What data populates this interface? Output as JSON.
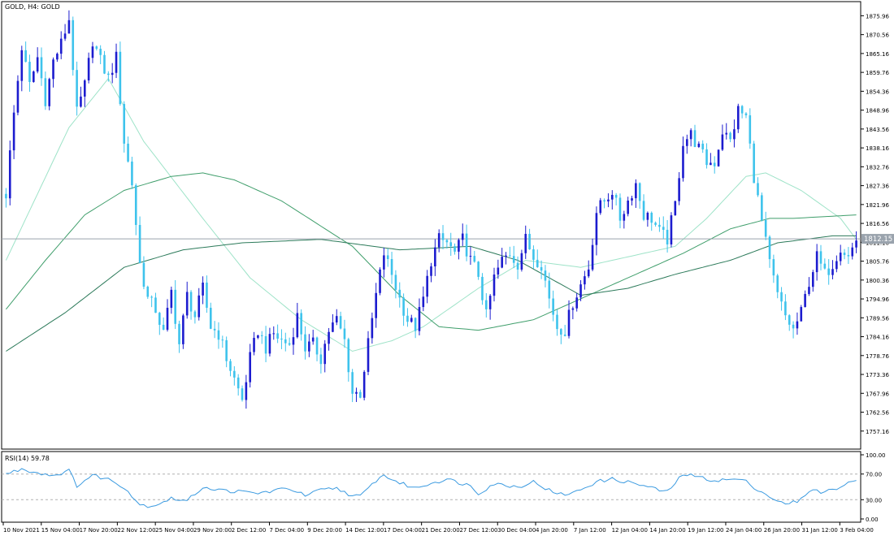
{
  "chart_data": [
    {
      "type": "candlestick",
      "title": "GOLD, H4:  GOLD",
      "ylim": [
        1752.0,
        1880.0
      ],
      "y_ticks": [
        1757.16,
        1762.56,
        1767.96,
        1773.36,
        1778.76,
        1784.16,
        1789.56,
        1794.96,
        1800.36,
        1805.76,
        1811.16,
        1816.56,
        1821.96,
        1827.36,
        1832.76,
        1838.16,
        1843.56,
        1848.96,
        1854.36,
        1859.76,
        1865.16,
        1870.56,
        1875.96
      ],
      "x_tick_labels": [
        "10 Nov 2021",
        "15 Nov 04:00",
        "17 Nov 20:00",
        "22 Nov 12:00",
        "25 Nov 04:00",
        "29 Nov 20:00",
        "2 Dec 12:00",
        "7 Dec 04:00",
        "9 Dec 20:00",
        "14 Dec 12:00",
        "17 Dec 04:00",
        "21 Dec 20:00",
        "27 Dec 12:00",
        "30 Dec 04:00",
        "4 Jan 20:00",
        "7 Jan 12:00",
        "12 Jan 04:00",
        "14 Jan 20:00",
        "19 Jan 12:00",
        "24 Jan 04:00",
        "26 Jan 20:00",
        "31 Jan 12:00",
        "3 Feb 04:00"
      ],
      "current_price": 1812.15,
      "current_price_label": "1812.15",
      "grid": false,
      "bull_color": "#1c1ccf",
      "bear_color": "#3ec3ec",
      "price_anchors": [
        [
          0,
          1825
        ],
        [
          2,
          1848
        ],
        [
          4,
          1867
        ],
        [
          6,
          1856
        ],
        [
          8,
          1864
        ],
        [
          10,
          1852
        ],
        [
          12,
          1863
        ],
        [
          14,
          1868
        ],
        [
          16,
          1875
        ],
        [
          18,
          1848
        ],
        [
          20,
          1856
        ],
        [
          22,
          1869
        ],
        [
          24,
          1863
        ],
        [
          26,
          1858
        ],
        [
          28,
          1864
        ],
        [
          30,
          1840
        ],
        [
          32,
          1828
        ],
        [
          34,
          1805
        ],
        [
          36,
          1795
        ],
        [
          38,
          1792
        ],
        [
          40,
          1785
        ],
        [
          42,
          1797
        ],
        [
          44,
          1782
        ],
        [
          46,
          1796
        ],
        [
          48,
          1790
        ],
        [
          50,
          1798
        ],
        [
          52,
          1787
        ],
        [
          54,
          1785
        ],
        [
          56,
          1778
        ],
        [
          58,
          1772
        ],
        [
          60,
          1766
        ],
        [
          62,
          1778
        ],
        [
          64,
          1786
        ],
        [
          66,
          1781
        ],
        [
          68,
          1785
        ],
        [
          70,
          1783
        ],
        [
          72,
          1782
        ],
        [
          74,
          1790
        ],
        [
          76,
          1781
        ],
        [
          78,
          1782
        ],
        [
          80,
          1778
        ],
        [
          82,
          1786
        ],
        [
          84,
          1789
        ],
        [
          86,
          1783
        ],
        [
          88,
          1768
        ],
        [
          90,
          1768
        ],
        [
          92,
          1782
        ],
        [
          94,
          1796
        ],
        [
          96,
          1808
        ],
        [
          98,
          1802
        ],
        [
          100,
          1795
        ],
        [
          102,
          1789
        ],
        [
          104,
          1787
        ],
        [
          106,
          1795
        ],
        [
          108,
          1806
        ],
        [
          110,
          1812
        ],
        [
          112,
          1811
        ],
        [
          114,
          1808
        ],
        [
          116,
          1812
        ],
        [
          118,
          1806
        ],
        [
          120,
          1802
        ],
        [
          122,
          1790
        ],
        [
          124,
          1801
        ],
        [
          126,
          1806
        ],
        [
          128,
          1808
        ],
        [
          130,
          1805
        ],
        [
          132,
          1812
        ],
        [
          134,
          1807
        ],
        [
          136,
          1805
        ],
        [
          138,
          1795
        ],
        [
          140,
          1787
        ],
        [
          142,
          1786
        ],
        [
          144,
          1794
        ],
        [
          146,
          1799
        ],
        [
          148,
          1804
        ],
        [
          150,
          1820
        ],
        [
          152,
          1823
        ],
        [
          154,
          1826
        ],
        [
          156,
          1818
        ],
        [
          158,
          1823
        ],
        [
          160,
          1828
        ],
        [
          162,
          1819
        ],
        [
          164,
          1818
        ],
        [
          166,
          1814
        ],
        [
          168,
          1812
        ],
        [
          170,
          1822
        ],
        [
          172,
          1840
        ],
        [
          174,
          1842
        ],
        [
          176,
          1838
        ],
        [
          178,
          1834
        ],
        [
          180,
          1834
        ],
        [
          182,
          1843
        ],
        [
          184,
          1840
        ],
        [
          186,
          1849
        ],
        [
          188,
          1847
        ],
        [
          190,
          1830
        ],
        [
          192,
          1817
        ],
        [
          194,
          1805
        ],
        [
          196,
          1796
        ],
        [
          198,
          1790
        ],
        [
          200,
          1786
        ],
        [
          202,
          1791
        ],
        [
          204,
          1800
        ],
        [
          206,
          1807
        ],
        [
          208,
          1802
        ],
        [
          210,
          1805
        ],
        [
          212,
          1810
        ],
        [
          214,
          1807
        ],
        [
          216,
          1812
        ]
      ],
      "ma_fast_anchors": [
        [
          0,
          1806
        ],
        [
          16,
          1844
        ],
        [
          26,
          1858
        ],
        [
          35,
          1840
        ],
        [
          50,
          1818
        ],
        [
          62,
          1801
        ],
        [
          75,
          1789
        ],
        [
          88,
          1780
        ],
        [
          98,
          1783
        ],
        [
          106,
          1787
        ],
        [
          120,
          1798
        ],
        [
          132,
          1806
        ],
        [
          146,
          1804
        ],
        [
          158,
          1807
        ],
        [
          170,
          1810
        ],
        [
          178,
          1818
        ],
        [
          188,
          1830
        ],
        [
          193,
          1831
        ],
        [
          202,
          1826
        ],
        [
          212,
          1818
        ],
        [
          216,
          1812
        ]
      ],
      "ma_mid_anchors": [
        [
          0,
          1792
        ],
        [
          10,
          1806
        ],
        [
          20,
          1819
        ],
        [
          30,
          1826
        ],
        [
          42,
          1830
        ],
        [
          50,
          1831
        ],
        [
          58,
          1829
        ],
        [
          70,
          1823
        ],
        [
          88,
          1810
        ],
        [
          100,
          1796
        ],
        [
          110,
          1787
        ],
        [
          120,
          1786
        ],
        [
          134,
          1789
        ],
        [
          142,
          1793
        ],
        [
          152,
          1798
        ],
        [
          162,
          1803
        ],
        [
          172,
          1808
        ],
        [
          184,
          1815
        ],
        [
          194,
          1818
        ],
        [
          200,
          1818
        ],
        [
          216,
          1819
        ]
      ],
      "ma_slow_anchors": [
        [
          0,
          1780
        ],
        [
          15,
          1791
        ],
        [
          30,
          1804
        ],
        [
          45,
          1809
        ],
        [
          60,
          1811
        ],
        [
          80,
          1812
        ],
        [
          100,
          1809
        ],
        [
          118,
          1810
        ],
        [
          130,
          1806
        ],
        [
          146,
          1796
        ],
        [
          158,
          1798
        ],
        [
          170,
          1802
        ],
        [
          184,
          1806
        ],
        [
          196,
          1811
        ],
        [
          210,
          1813
        ],
        [
          216,
          1813
        ]
      ],
      "ma_fast_color": "#9ee3c8",
      "ma_mid_color": "#3f9e6b",
      "ma_slow_color": "#2c7a5a"
    },
    {
      "type": "line",
      "title": "RSI(14) 59.78",
      "ylim": [
        0,
        100
      ],
      "y_ticks": [
        0.0,
        30.0,
        70.0,
        100.0
      ],
      "y_tick_labels": [
        "0.00",
        "30.00",
        "70.00",
        "100.00"
      ],
      "levels": [
        30,
        70
      ],
      "color": "#3a9ae0",
      "rsi_anchors": [
        [
          0,
          70
        ],
        [
          4,
          78
        ],
        [
          8,
          72
        ],
        [
          12,
          68
        ],
        [
          16,
          75
        ],
        [
          18,
          52
        ],
        [
          22,
          68
        ],
        [
          26,
          62
        ],
        [
          30,
          50
        ],
        [
          34,
          22
        ],
        [
          37,
          20
        ],
        [
          42,
          32
        ],
        [
          46,
          28
        ],
        [
          50,
          50
        ],
        [
          54,
          45
        ],
        [
          60,
          42
        ],
        [
          64,
          40
        ],
        [
          72,
          48
        ],
        [
          76,
          36
        ],
        [
          80,
          45
        ],
        [
          84,
          48
        ],
        [
          88,
          36
        ],
        [
          90,
          35
        ],
        [
          94,
          60
        ],
        [
          96,
          68
        ],
        [
          100,
          56
        ],
        [
          104,
          48
        ],
        [
          108,
          56
        ],
        [
          112,
          62
        ],
        [
          118,
          52
        ],
        [
          120,
          40
        ],
        [
          124,
          55
        ],
        [
          130,
          50
        ],
        [
          134,
          58
        ],
        [
          140,
          38
        ],
        [
          144,
          40
        ],
        [
          150,
          58
        ],
        [
          154,
          62
        ],
        [
          160,
          55
        ],
        [
          166,
          45
        ],
        [
          168,
          42
        ],
        [
          172,
          70
        ],
        [
          176,
          65
        ],
        [
          180,
          60
        ],
        [
          186,
          62
        ],
        [
          188,
          58
        ],
        [
          192,
          42
        ],
        [
          196,
          28
        ],
        [
          198,
          22
        ],
        [
          202,
          30
        ],
        [
          204,
          45
        ],
        [
          208,
          42
        ],
        [
          212,
          50
        ],
        [
          216,
          60
        ]
      ],
      "current_value": 59.78
    }
  ]
}
